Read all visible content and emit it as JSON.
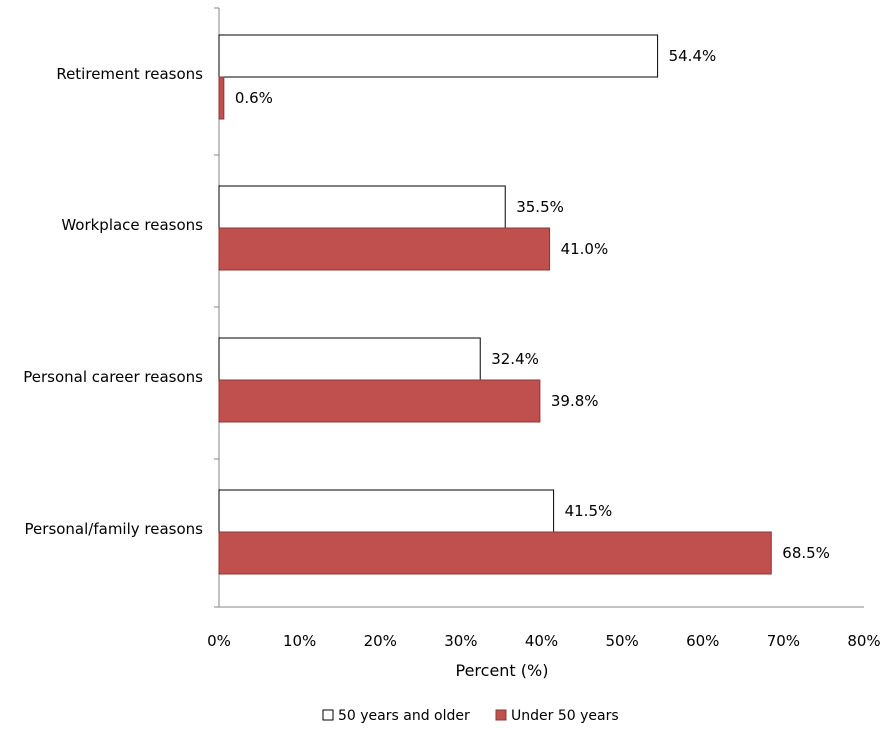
{
  "chart_data": {
    "type": "bar",
    "orientation": "horizontal",
    "categories": [
      "Retirement reasons",
      "Workplace reasons",
      "Personal career reasons",
      "Personal/family reasons"
    ],
    "series": [
      {
        "name": "50 years and older",
        "color": "#ffffff",
        "values": [
          54.4,
          35.5,
          32.4,
          41.5
        ],
        "labels": [
          "54.4%",
          "35.5%",
          "32.4%",
          "41.5%"
        ]
      },
      {
        "name": "Under 50 years",
        "color": "#c0504d",
        "values": [
          0.6,
          41.0,
          39.8,
          68.5
        ],
        "labels": [
          "0.6%",
          "41.0%",
          "39.8%",
          "68.5%"
        ]
      }
    ],
    "xlabel": "Percent (%)",
    "ylabel": "",
    "xlim": [
      0,
      80
    ],
    "xticks": [
      0,
      10,
      20,
      30,
      40,
      50,
      60,
      70,
      80
    ],
    "xtick_labels": [
      "0%",
      "10%",
      "20%",
      "30%",
      "40%",
      "50%",
      "60%",
      "70%",
      "80%"
    ],
    "grid": false,
    "legend_position": "bottom"
  }
}
